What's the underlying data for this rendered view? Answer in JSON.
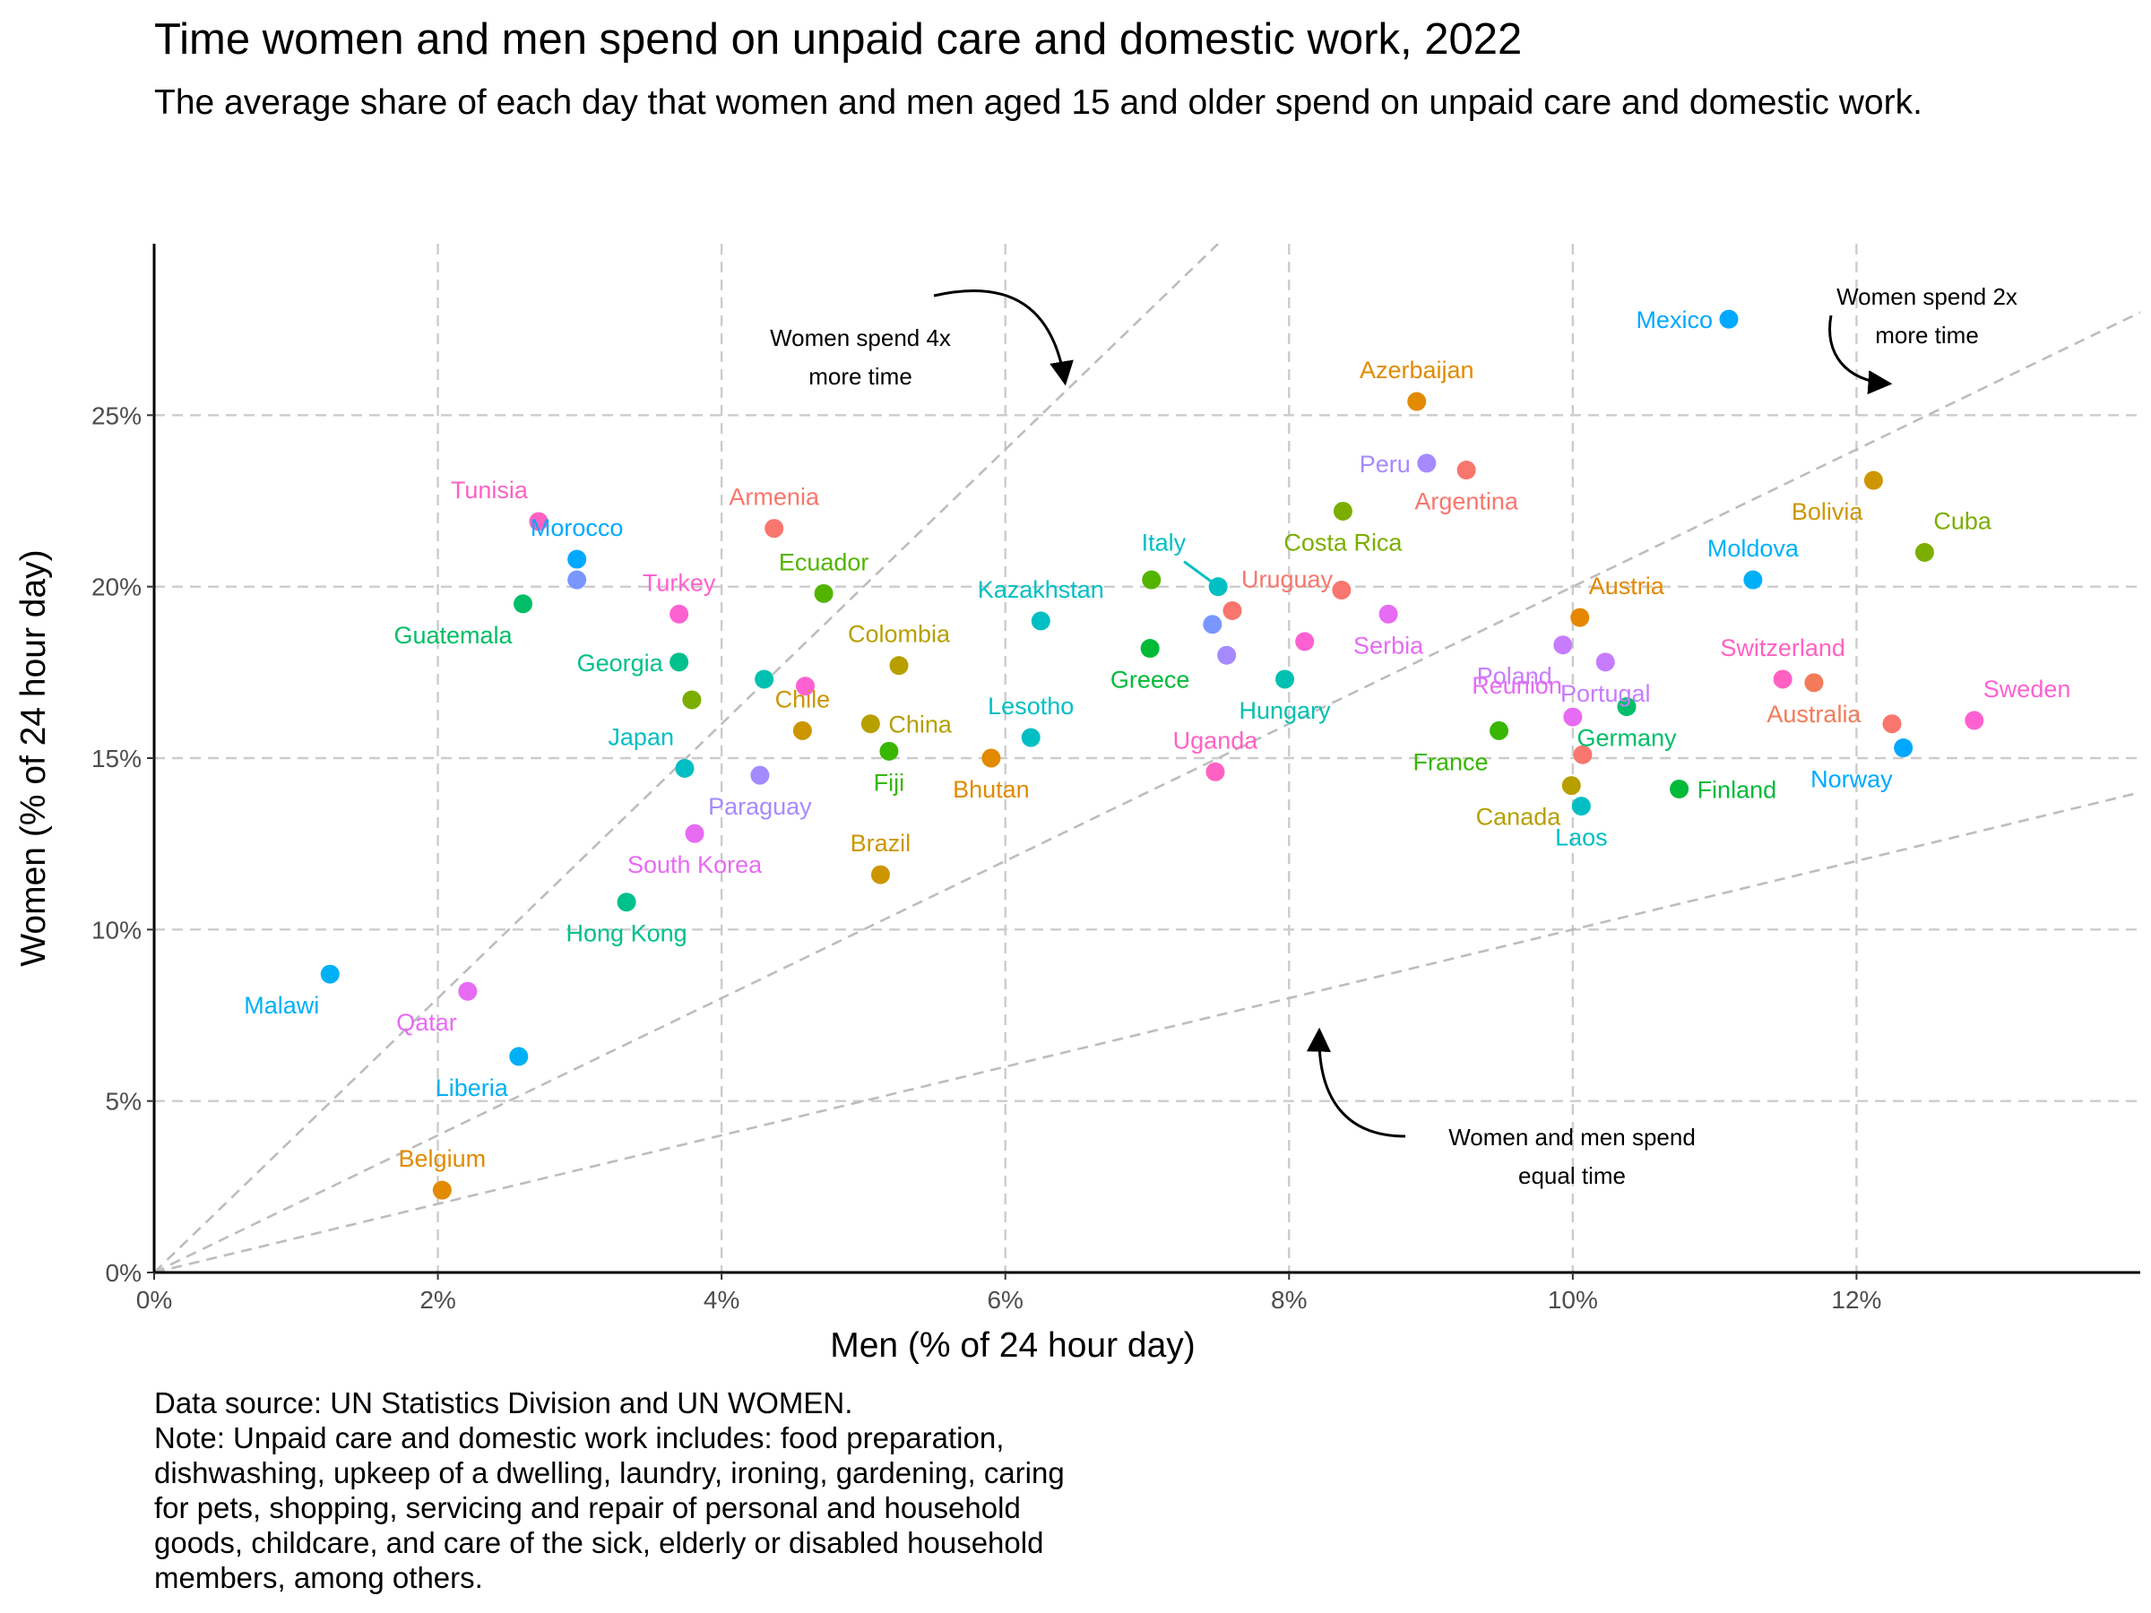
{
  "chart_data": {
    "type": "scatter",
    "title": "Time women and men spend on unpaid care and domestic work, 2022",
    "subtitle": "The average share of each day that women and men aged 15 and older spend on unpaid care and domestic work.",
    "xlabel": "Men (% of 24 hour day)",
    "ylabel": "Women (% of 24 hour day)",
    "xlim": [
      0,
      14
    ],
    "ylim": [
      0,
      30
    ],
    "x_ticks": [
      0,
      2,
      4,
      6,
      8,
      10,
      12
    ],
    "y_ticks": [
      0,
      5,
      10,
      15,
      20,
      25
    ],
    "x_tick_labels": [
      "0%",
      "2%",
      "4%",
      "6%",
      "8%",
      "10%",
      "12%"
    ],
    "y_tick_labels": [
      "0%",
      "5%",
      "10%",
      "15%",
      "20%",
      "25%"
    ],
    "grid": true,
    "legend": "none",
    "reference_lines": [
      {
        "ratio": 4,
        "label": "Women spend 4x more time"
      },
      {
        "ratio": 2,
        "label": "Women spend 2x more time"
      },
      {
        "ratio": 1,
        "label": "Women and men spend equal time"
      }
    ],
    "points": [
      {
        "name": "Mexico",
        "x": 11.1,
        "y": 27.8,
        "color": "#00a9ff",
        "label_pos": "left"
      },
      {
        "name": "Azerbaijan",
        "x": 8.9,
        "y": 25.4,
        "color": "#e28a00",
        "label_pos": "above"
      },
      {
        "name": "Peru",
        "x": 8.97,
        "y": 23.6,
        "color": "#a58aff",
        "label_pos": "left"
      },
      {
        "name": "Argentina",
        "x": 9.25,
        "y": 23.4,
        "color": "#f8766d",
        "label_pos": "below"
      },
      {
        "name": "Costa Rica",
        "x": 8.38,
        "y": 22.2,
        "color": "#7cae00",
        "label_pos": "below"
      },
      {
        "name": "Bolivia",
        "x": 12.12,
        "y": 23.1,
        "color": "#cd9600",
        "label_pos": "below-left"
      },
      {
        "name": "Cuba",
        "x": 12.48,
        "y": 21.0,
        "color": "#7cae00",
        "label_pos": "above-right"
      },
      {
        "name": "Moldova",
        "x": 11.27,
        "y": 20.2,
        "color": "#00b0f6",
        "label_pos": "above"
      },
      {
        "name": "Tunisia",
        "x": 2.71,
        "y": 21.9,
        "color": "#ff61c3",
        "label_pos": "above-left"
      },
      {
        "name": "Morocco",
        "x": 2.98,
        "y": 20.8,
        "color": "#00a9ff",
        "label_pos": "above"
      },
      {
        "name": "Armenia",
        "x": 4.37,
        "y": 21.7,
        "color": "#f8766d",
        "label_pos": "above"
      },
      {
        "name": "Ecuador",
        "x": 4.72,
        "y": 19.8,
        "color": "#53b400",
        "label_pos": "above"
      },
      {
        "name": "Turkey",
        "x": 3.7,
        "y": 19.2,
        "color": "#fd61d1",
        "label_pos": "above"
      },
      {
        "name": "Guatemala",
        "x": 2.6,
        "y": 19.5,
        "color": "#00be67",
        "label_pos": "below-left"
      },
      {
        "name": "Georgia",
        "x": 3.7,
        "y": 17.8,
        "color": "#00c08b",
        "label_pos": "left"
      },
      {
        "name": "Kazakhstan",
        "x": 6.25,
        "y": 19.0,
        "color": "#00bfc4",
        "label_pos": "above"
      },
      {
        "name": "Italy",
        "x": 7.5,
        "y": 20.0,
        "color": "#00bfc4",
        "label_pos": "above-left"
      },
      {
        "name": "Uruguay",
        "x": 7.6,
        "y": 19.3,
        "color": "#f8766d",
        "label_pos": "above-right"
      },
      {
        "name": "Colombia",
        "x": 5.25,
        "y": 17.7,
        "color": "#b79f00",
        "label_pos": "above"
      },
      {
        "name": "Greece",
        "x": 7.02,
        "y": 18.2,
        "color": "#00ba38",
        "label_pos": "below"
      },
      {
        "name": "Serbia",
        "x": 8.7,
        "y": 19.2,
        "color": "#e76bf3",
        "label_pos": "below"
      },
      {
        "name": "Hungary",
        "x": 7.97,
        "y": 17.3,
        "color": "#00c0af",
        "label_pos": "below"
      },
      {
        "name": "Poland",
        "x": 9.93,
        "y": 18.3,
        "color": "#c77cff",
        "label_pos": "below-left"
      },
      {
        "name": "Austria",
        "x": 10.05,
        "y": 19.1,
        "color": "#e58700",
        "label_pos": "above-right"
      },
      {
        "name": "Portugal",
        "x": 10.23,
        "y": 17.8,
        "color": "#c77cff",
        "label_pos": "below"
      },
      {
        "name": "Switzerland",
        "x": 11.48,
        "y": 17.3,
        "color": "#ff61c3",
        "label_pos": "above"
      },
      {
        "name": "Australia",
        "x": 11.7,
        "y": 17.2,
        "color": "#f37b59",
        "label_pos": "below"
      },
      {
        "name": "Sweden",
        "x": 12.83,
        "y": 16.1,
        "color": "#fd61d1",
        "label_pos": "above-right"
      },
      {
        "name": "Norway",
        "x": 12.33,
        "y": 15.3,
        "color": "#00a9ff",
        "label_pos": "below-left"
      },
      {
        "name": "Reunion",
        "x": 10.0,
        "y": 16.2,
        "color": "#e76bf3",
        "label_pos": "above-left"
      },
      {
        "name": "Germany",
        "x": 10.38,
        "y": 16.5,
        "color": "#00be67",
        "label_pos": "below"
      },
      {
        "name": "France",
        "x": 9.48,
        "y": 15.8,
        "color": "#39b600",
        "label_pos": "below-left"
      },
      {
        "name": "Finland",
        "x": 10.75,
        "y": 14.1,
        "color": "#00ba38",
        "label_pos": "right"
      },
      {
        "name": "Canada",
        "x": 9.99,
        "y": 14.2,
        "color": "#b79f00",
        "label_pos": "below-left"
      },
      {
        "name": "Laos",
        "x": 10.06,
        "y": 13.6,
        "color": "#00bfc4",
        "label_pos": "below"
      },
      {
        "name": "Chile",
        "x": 4.57,
        "y": 15.8,
        "color": "#cd9600",
        "label_pos": "above"
      },
      {
        "name": "China",
        "x": 5.05,
        "y": 16.0,
        "color": "#b79f00",
        "label_pos": "right"
      },
      {
        "name": "Fiji",
        "x": 5.18,
        "y": 15.2,
        "color": "#39b600",
        "label_pos": "below"
      },
      {
        "name": "Lesotho",
        "x": 6.18,
        "y": 15.6,
        "color": "#00bfc4",
        "label_pos": "above"
      },
      {
        "name": "Bhutan",
        "x": 5.9,
        "y": 15.0,
        "color": "#e28a00",
        "label_pos": "below"
      },
      {
        "name": "Uganda",
        "x": 7.48,
        "y": 14.6,
        "color": "#ff61c3",
        "label_pos": "above"
      },
      {
        "name": "Japan",
        "x": 3.74,
        "y": 14.7,
        "color": "#00bfc4",
        "label_pos": "above-left"
      },
      {
        "name": "Paraguay",
        "x": 4.27,
        "y": 14.5,
        "color": "#a58aff",
        "label_pos": "below"
      },
      {
        "name": "Brazil",
        "x": 5.12,
        "y": 11.6,
        "color": "#cd9600",
        "label_pos": "above"
      },
      {
        "name": "South Korea",
        "x": 3.81,
        "y": 12.8,
        "color": "#e76bf3",
        "label_pos": "below"
      },
      {
        "name": "Hong Kong",
        "x": 3.33,
        "y": 10.8,
        "color": "#00c08b",
        "label_pos": "below"
      },
      {
        "name": "Malawi",
        "x": 1.24,
        "y": 8.7,
        "color": "#00b0f6",
        "label_pos": "below-left"
      },
      {
        "name": "Qatar",
        "x": 2.21,
        "y": 8.2,
        "color": "#e76bf3",
        "label_pos": "below-left"
      },
      {
        "name": "Liberia",
        "x": 2.57,
        "y": 6.3,
        "color": "#00b0f6",
        "label_pos": "below-left"
      },
      {
        "name": "Belgium",
        "x": 2.03,
        "y": 2.4,
        "color": "#e28a00",
        "label_pos": "above"
      },
      {
        "name": "",
        "x": 2.98,
        "y": 20.2,
        "color": "#7997ff",
        "label_pos": "none"
      },
      {
        "name": "",
        "x": 3.79,
        "y": 16.7,
        "color": "#7cae00",
        "label_pos": "none"
      },
      {
        "name": "",
        "x": 4.3,
        "y": 17.3,
        "color": "#00c0af",
        "label_pos": "none"
      },
      {
        "name": "",
        "x": 4.59,
        "y": 17.1,
        "color": "#fd61d1",
        "label_pos": "none"
      },
      {
        "name": "",
        "x": 7.46,
        "y": 18.9,
        "color": "#7997ff",
        "label_pos": "none"
      },
      {
        "name": "",
        "x": 7.56,
        "y": 18.0,
        "color": "#a58aff",
        "label_pos": "none"
      },
      {
        "name": "",
        "x": 8.11,
        "y": 18.4,
        "color": "#fd61d1",
        "label_pos": "none"
      },
      {
        "name": "",
        "x": 8.37,
        "y": 19.9,
        "color": "#f8766d",
        "label_pos": "none"
      },
      {
        "name": "",
        "x": 7.03,
        "y": 20.2,
        "color": "#53b400",
        "label_pos": "none"
      },
      {
        "name": "",
        "x": 10.07,
        "y": 15.1,
        "color": "#f8766d",
        "label_pos": "none"
      },
      {
        "name": "",
        "x": 12.25,
        "y": 16.0,
        "color": "#f8766d",
        "label_pos": "none"
      }
    ]
  },
  "annotations": {
    "ratio4": [
      "Women spend 4x",
      "more time"
    ],
    "ratio2": [
      "Women spend 2x",
      "more time"
    ],
    "equal": [
      "Women and men spend",
      "equal time"
    ]
  },
  "caption": {
    "source": "Data source: UN Statistics Division and UN WOMEN.",
    "note_lines": [
      "Note: Unpaid care and domestic work includes: food preparation,",
      "dishwashing, upkeep of a dwelling, laundry, ironing, gardening, caring",
      "for pets, shopping, servicing and repair of personal and household",
      "goods, childcare, and care of the sick, elderly or disabled household",
      "members, among others."
    ]
  }
}
